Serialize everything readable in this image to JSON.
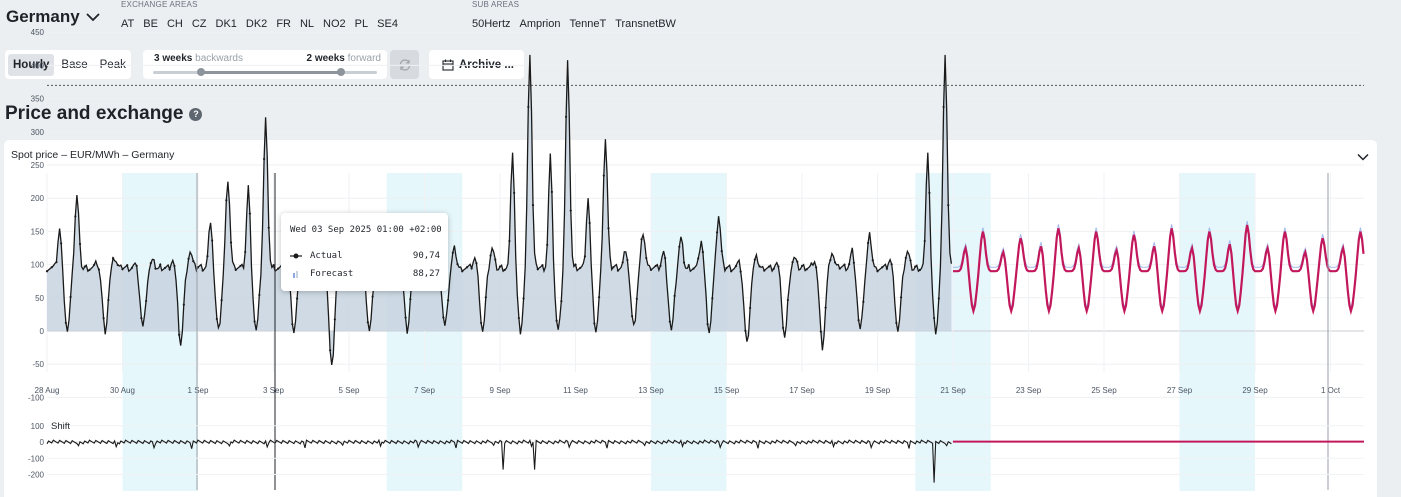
{
  "header": {
    "country": "Germany",
    "exchange_caption": "EXCHANGE AREAS",
    "exchange_areas": [
      "AT",
      "BE",
      "CH",
      "CZ",
      "DK1",
      "DK2",
      "FR",
      "NL",
      "NO2",
      "PL",
      "SE4"
    ],
    "sub_caption": "SUB AREAS",
    "sub_areas": [
      "50Hertz",
      "Amprion",
      "TenneT",
      "TransnetBW"
    ]
  },
  "controls": {
    "resolution": [
      "Hourly",
      "Base",
      "Peak"
    ],
    "resolution_selected": "Hourly",
    "range_back_value": "3 weeks",
    "range_back_word": "backwards",
    "range_fwd_value": "2 weeks",
    "range_fwd_word": "forward",
    "archive_label": "Archive ..."
  },
  "section": {
    "title": "Price and exchange",
    "help": "?"
  },
  "panel": {
    "title": "Spot price – EUR/MWh – Germany"
  },
  "tooltip": {
    "header": "Wed 03 Sep 2025 01:00 +02:00",
    "actual_label": "Actual",
    "actual_value": "90,74",
    "forecast_label": "Forecast",
    "forecast_value": "88,27"
  },
  "colors": {
    "actual": "#1a1a1a",
    "forecast_fill": "#c7d3df",
    "forecast_band": "#8ea6e6",
    "prediction": "#c2185b",
    "weekend": "#e6f7fb"
  },
  "chart_data": [
    {
      "type": "line",
      "title": "Spot price – EUR/MWh – Germany",
      "x_unit": "day index from 28 Aug 2025",
      "x_ticks": [
        "28 Aug",
        "30 Aug",
        "1 Sep",
        "3 Sep",
        "5 Sep",
        "7 Sep",
        "9 Sep",
        "11 Sep",
        "13 Sep",
        "15 Sep",
        "17 Sep",
        "19 Sep",
        "21 Sep",
        "23 Sep",
        "25 Sep",
        "27 Sep",
        "29 Sep",
        "1 Oct"
      ],
      "y_ticks": [
        450,
        400,
        350,
        300,
        250,
        200,
        150,
        100,
        50,
        0,
        -50,
        -100
      ],
      "ylim": [
        -115,
        460
      ],
      "reference_line": 370,
      "series": [
        {
          "name": "Actual",
          "style": "black line with markers, area filled"
        },
        {
          "name": "Forecast"
        }
      ],
      "daily_peaks_actual": [
        205,
        110,
        105,
        120,
        230,
        320,
        130,
        150,
        145,
        130,
        125,
        125,
        420,
        405,
        290,
        150,
        140,
        175,
        110,
        110,
        120,
        145,
        120,
        420
      ],
      "daily_lows_actual": [
        0,
        0,
        5,
        -20,
        0,
        0,
        0,
        -55,
        0,
        0,
        5,
        0,
        0,
        0,
        0,
        5,
        0,
        0,
        -20,
        -10,
        -25,
        0,
        0,
        0
      ],
      "forecast_peaks": [
        150,
        140,
        155,
        150,
        145,
        155,
        150,
        160,
        150,
        140,
        150,
        160,
        150,
        185
      ]
    },
    {
      "type": "line",
      "title": "Shift",
      "y_ticks": [
        100,
        0,
        -100,
        -200
      ],
      "ylim": [
        -250,
        120
      ]
    }
  ]
}
